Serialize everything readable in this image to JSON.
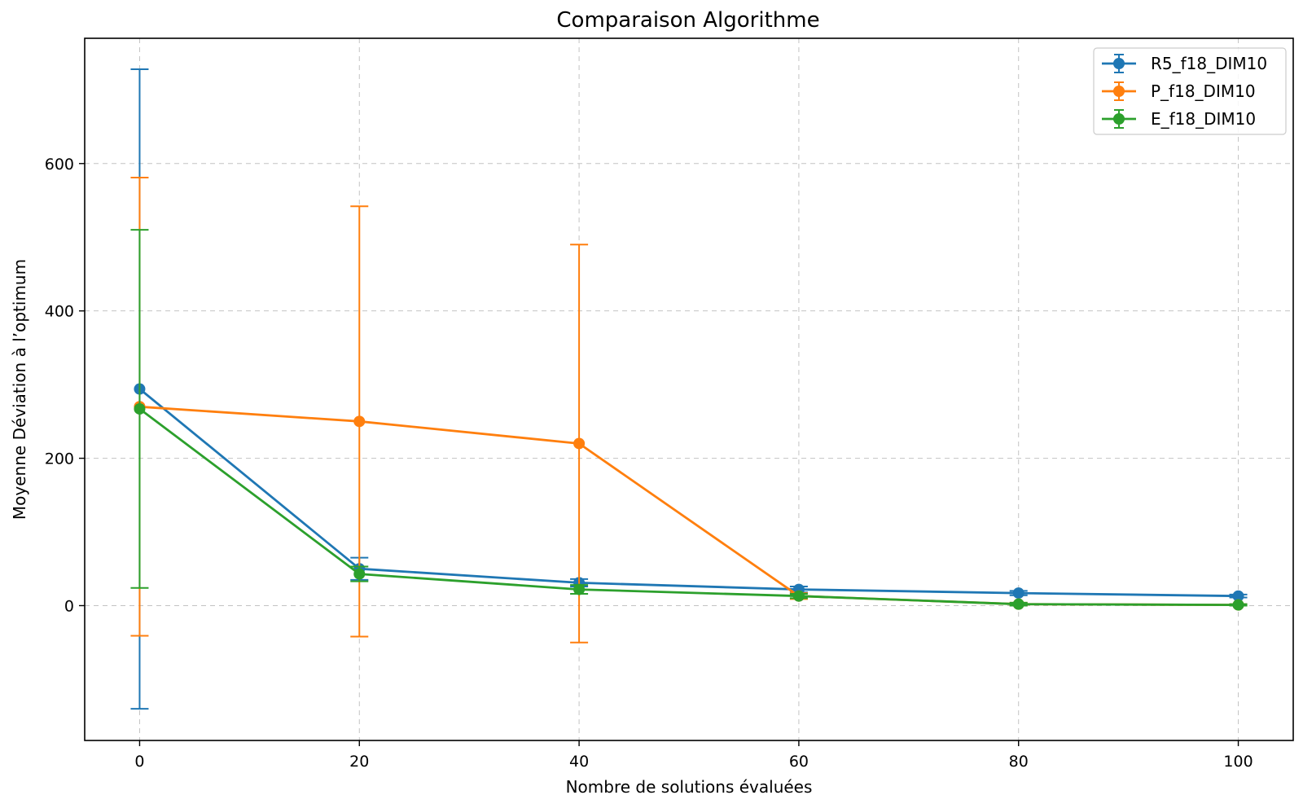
{
  "chart_data": {
    "type": "line",
    "title": "Comparaison Algorithme",
    "xlabel": "Nombre de solutions évaluées",
    "ylabel": "Moyenne Déviation à l’optimum",
    "x": [
      0,
      20,
      40,
      60,
      80,
      100
    ],
    "xlim": [
      -5,
      105
    ],
    "ylim": [
      -183,
      770
    ],
    "xticks": [
      0,
      20,
      40,
      60,
      80,
      100
    ],
    "yticks": [
      0,
      200,
      400,
      600
    ],
    "grid": true,
    "legend_position": "top-right",
    "series": [
      {
        "name": "R5_f18_DIM10",
        "color": "#1f77b4",
        "values": [
          294,
          50,
          31,
          22,
          17,
          13
        ],
        "errors": [
          434,
          15,
          5,
          4,
          3,
          2
        ]
      },
      {
        "name": "P_f18_DIM10",
        "color": "#ff7f0e",
        "values": [
          270,
          250,
          220,
          13,
          2,
          1
        ],
        "errors": [
          311,
          292,
          270,
          4,
          2,
          1
        ]
      },
      {
        "name": "E_f18_DIM10",
        "color": "#2ca02c",
        "values": [
          267,
          43,
          22,
          13,
          2,
          1
        ],
        "errors": [
          243,
          10,
          6,
          3,
          2,
          1
        ]
      }
    ]
  }
}
